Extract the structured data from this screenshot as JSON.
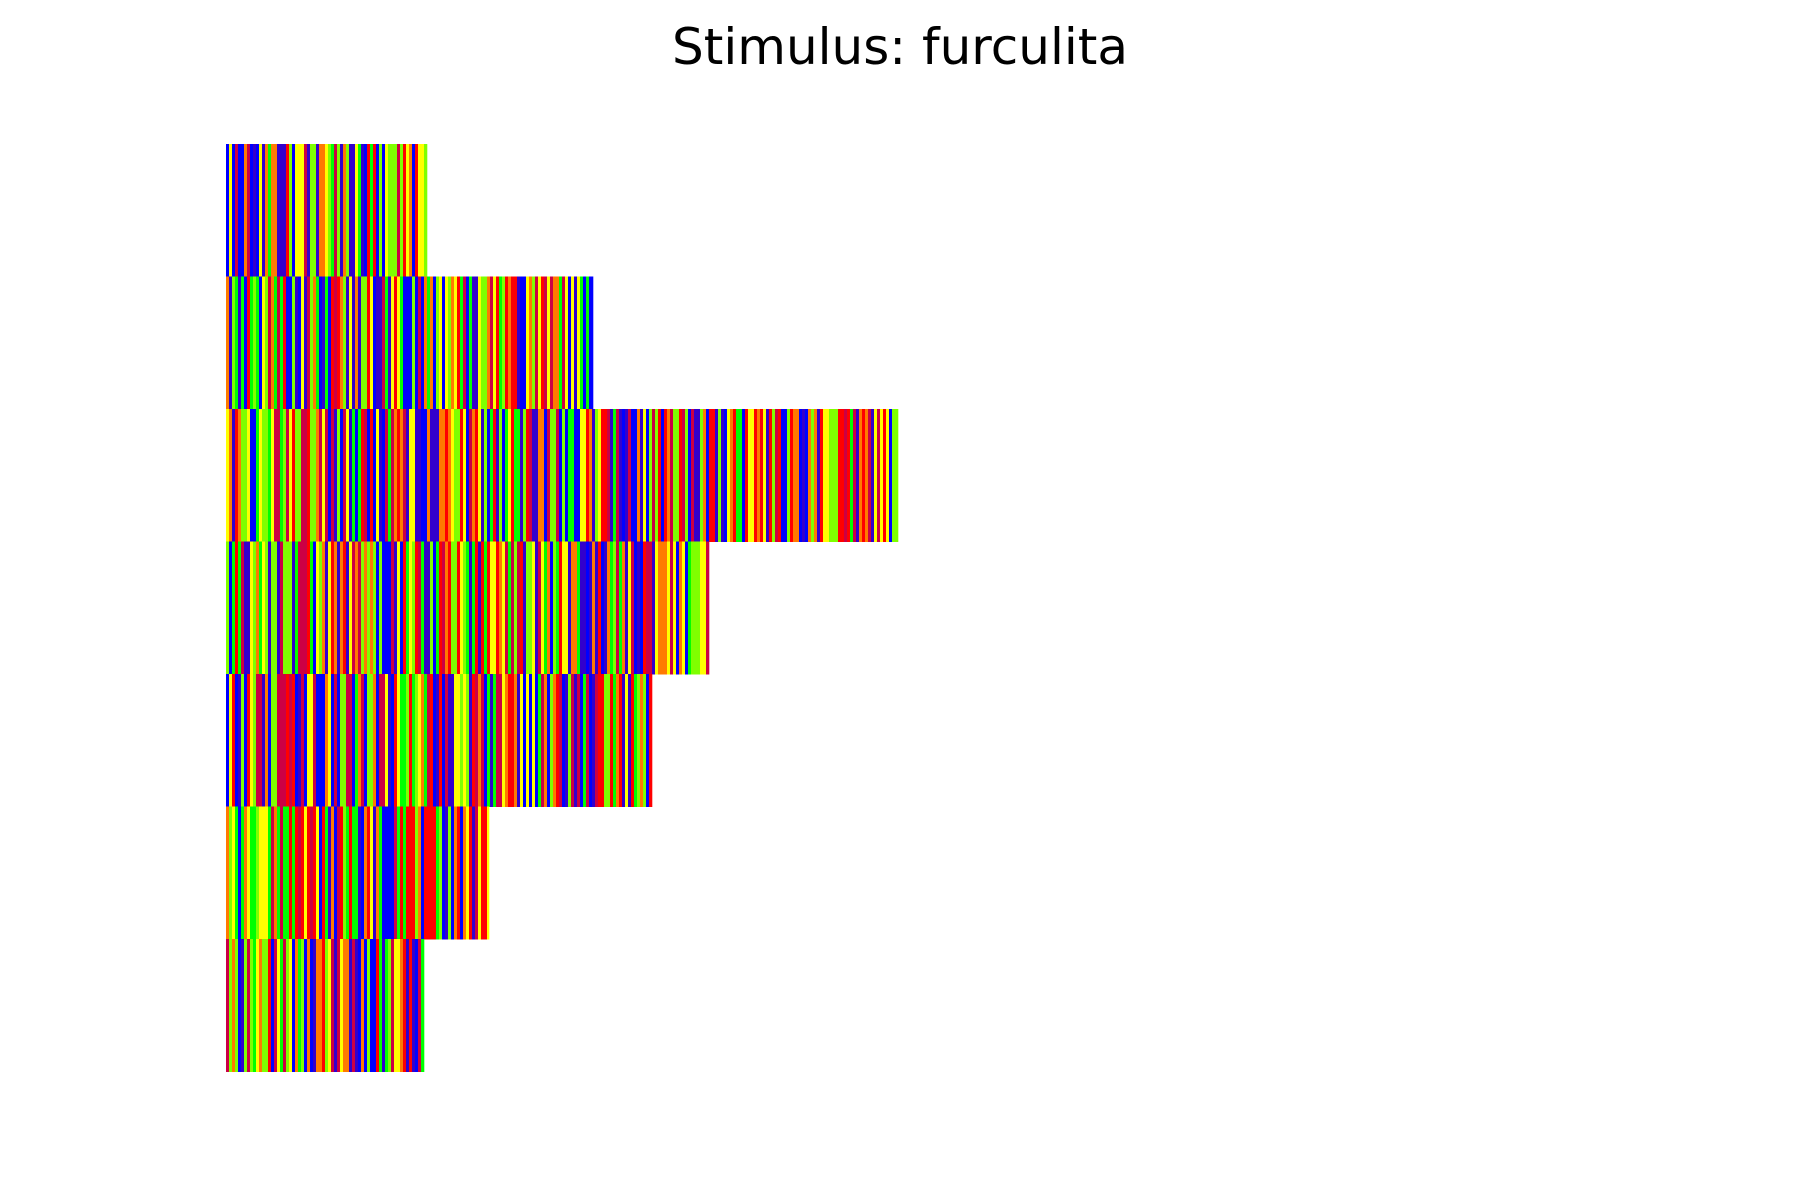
{
  "chart_data": {
    "type": "heatmap",
    "title": "Stimulus: furculita",
    "xlabel": "",
    "ylabel": "",
    "axes_visible": false,
    "grid": false,
    "legend": "none",
    "colors": [
      "#ff0000",
      "#ff7a00",
      "#ffff00",
      "#7fff00",
      "#00ff00",
      "#0000ff",
      "#3300cc",
      "#cc0044"
    ],
    "rows": [
      {
        "row": 1,
        "length": 201
      },
      {
        "row": 2,
        "length": 367
      },
      {
        "row": 3,
        "length": 672
      },
      {
        "row": 4,
        "length": 483
      },
      {
        "row": 5,
        "length": 426
      },
      {
        "row": 6,
        "length": 263
      },
      {
        "row": 7,
        "length": 198
      }
    ]
  }
}
